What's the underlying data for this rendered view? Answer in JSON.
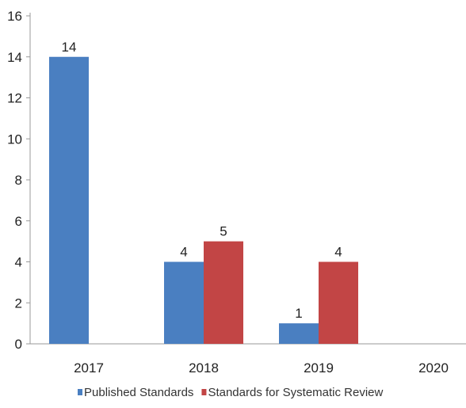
{
  "chart_data": {
    "type": "bar",
    "categories": [
      "2017",
      "2018",
      "2019",
      "2020"
    ],
    "series": [
      {
        "name": "Published Standards",
        "color": "#4a7fc1",
        "values": [
          14,
          4,
          1,
          0
        ]
      },
      {
        "name": "Standards for Systematic Review",
        "color": "#c24545",
        "values": [
          0,
          5,
          4,
          0
        ]
      }
    ],
    "data_labels": [
      [
        14,
        4,
        1,
        null
      ],
      [
        null,
        5,
        4,
        null
      ]
    ],
    "ylim": [
      0,
      16
    ],
    "yticks": [
      0,
      2,
      4,
      6,
      8,
      10,
      12,
      14,
      16
    ],
    "grid": false,
    "legend_position": "bottom"
  }
}
